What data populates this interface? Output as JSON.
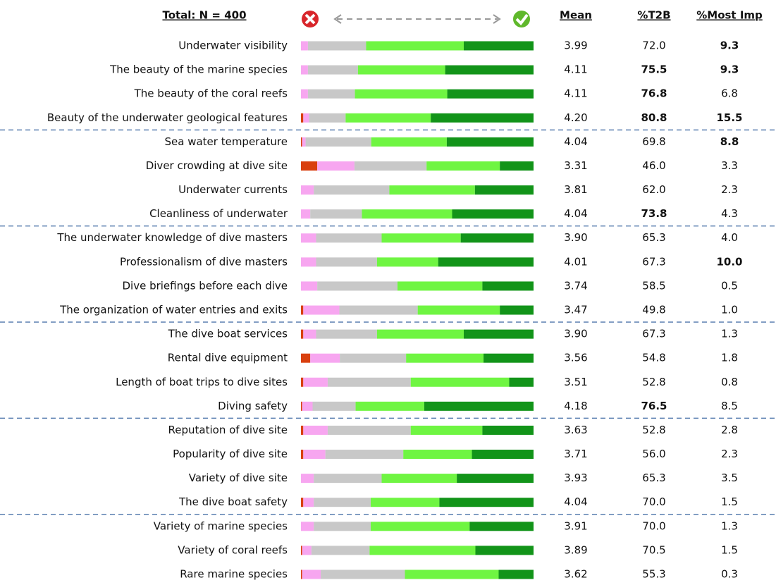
{
  "chart_data": {
    "type": "bar",
    "orientation": "horizontal",
    "stacked": true,
    "title": "Total: N = 400",
    "xlim": [
      0,
      100
    ],
    "categories": [
      "Underwater visibility",
      "The beauty of the marine species",
      "The beauty of the coral reefs",
      "Beauty of the underwater geological features",
      "Sea water temperature",
      "Diver crowding at dive site",
      "Underwater currents",
      "Cleanliness of underwater",
      "The underwater knowledge of dive masters",
      "Professionalism of dive masters",
      "Dive briefings before each dive",
      "The organization of water entries and exits",
      "The dive boat services",
      "Rental dive equipment",
      "Length of boat trips to dive sites",
      "Diving safety",
      "Reputation of dive site",
      "Popularity of dive site",
      "Variety of dive site",
      "The dive boat safety",
      "Variety of marine species",
      "Variety of coral reefs",
      "Rare marine species"
    ],
    "series": [
      {
        "color": "#d9400f",
        "values": [
          0,
          0,
          0,
          1,
          0.5,
          7,
          0,
          0,
          0,
          0,
          0,
          1,
          1,
          4,
          1,
          0.5,
          1,
          1,
          0,
          1,
          0,
          0.5,
          0.5
        ]
      },
      {
        "color": "#f7a6f0",
        "values": [
          3,
          3,
          3,
          2.5,
          1.5,
          16,
          5.5,
          4,
          6.5,
          6.5,
          7,
          15.5,
          5.5,
          12.7,
          10.5,
          4.5,
          10.5,
          9.5,
          5.5,
          4.5,
          5.5,
          4,
          8
        ]
      },
      {
        "color": "#c8c8c8",
        "values": [
          25,
          21.5,
          20.2,
          15.7,
          28.2,
          31,
          32.5,
          22.2,
          28.2,
          26.2,
          34.5,
          33.7,
          26.2,
          28.5,
          35.7,
          18.5,
          35.7,
          33.5,
          29.2,
          24.5,
          24.5,
          25,
          36.2
        ]
      },
      {
        "color": "#6ff542",
        "values": [
          42,
          37.5,
          39.7,
          36.6,
          32.5,
          31.5,
          36.8,
          38.8,
          34,
          26.3,
          36.5,
          35.3,
          37.3,
          33.3,
          42.3,
          29.5,
          30.8,
          29.5,
          32.3,
          29.5,
          42.5,
          45.5,
          40.3
        ]
      },
      {
        "color": "#129419",
        "values": [
          30,
          38,
          37.1,
          44.2,
          37.3,
          14.5,
          25.2,
          35,
          31.3,
          41,
          22,
          14.5,
          30,
          21.5,
          10.5,
          47,
          22,
          26.5,
          33,
          40.5,
          27.5,
          25,
          15
        ]
      }
    ],
    "columns": [
      {
        "header": "Mean",
        "values": [
          "3.99",
          "4.11",
          "4.11",
          "4.20",
          "4.04",
          "3.31",
          "3.81",
          "4.04",
          "3.90",
          "4.01",
          "3.74",
          "3.47",
          "3.90",
          "3.56",
          "3.51",
          "4.18",
          "3.63",
          "3.71",
          "3.93",
          "4.04",
          "3.91",
          "3.89",
          "3.62"
        ],
        "bold": [
          false,
          false,
          false,
          false,
          false,
          false,
          false,
          false,
          false,
          false,
          false,
          false,
          false,
          false,
          false,
          false,
          false,
          false,
          false,
          false,
          false,
          false,
          false
        ]
      },
      {
        "header": "%T2B",
        "values": [
          "72.0",
          "75.5",
          "76.8",
          "80.8",
          "69.8",
          "46.0",
          "62.0",
          "73.8",
          "65.3",
          "67.3",
          "58.5",
          "49.8",
          "67.3",
          "54.8",
          "52.8",
          "76.5",
          "52.8",
          "56.0",
          "65.3",
          "70.0",
          "70.0",
          "70.5",
          "55.3"
        ],
        "bold": [
          false,
          true,
          true,
          true,
          false,
          false,
          false,
          true,
          false,
          false,
          false,
          false,
          false,
          false,
          false,
          true,
          false,
          false,
          false,
          false,
          false,
          false,
          false
        ]
      },
      {
        "header": "%Most Imp",
        "values": [
          "9.3",
          "9.3",
          "6.8",
          "15.5",
          "8.8",
          "3.3",
          "2.3",
          "4.3",
          "4.0",
          "10.0",
          "0.5",
          "1.0",
          "1.3",
          "1.8",
          "0.8",
          "8.5",
          "2.8",
          "2.3",
          "3.5",
          "1.5",
          "1.3",
          "1.5",
          "0.3"
        ],
        "bold": [
          true,
          true,
          false,
          true,
          true,
          false,
          false,
          false,
          false,
          true,
          false,
          false,
          false,
          false,
          false,
          false,
          false,
          false,
          false,
          false,
          false,
          false,
          false
        ]
      }
    ]
  }
}
